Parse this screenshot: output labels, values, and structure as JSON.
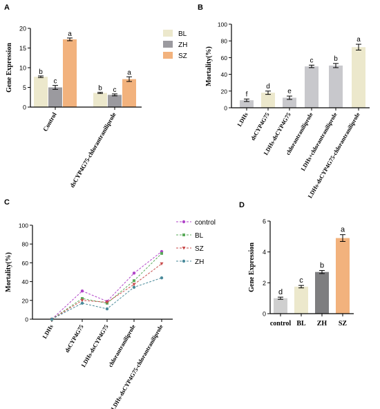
{
  "chart_data": [
    {
      "panel": "A",
      "type": "bar",
      "ylabel": "Gene Expression",
      "ylim": [
        0,
        20
      ],
      "yticks": [
        0,
        5,
        10,
        15,
        20
      ],
      "categories": [
        "Control",
        "dsCYP4G75-chlorantraniliprole"
      ],
      "series": [
        {
          "name": "BL",
          "color": "#ece8cc",
          "values": [
            7.7,
            3.6
          ],
          "errors": [
            0.2,
            0.15
          ],
          "letters": [
            "b",
            "b"
          ]
        },
        {
          "name": "ZH",
          "color": "#9b9a9f",
          "values": [
            5.0,
            3.1
          ],
          "errors": [
            0.5,
            0.25
          ],
          "letters": [
            "c",
            "c"
          ]
        },
        {
          "name": "SZ",
          "color": "#f2b27d",
          "values": [
            17.2,
            7.1
          ],
          "errors": [
            0.35,
            0.6
          ],
          "letters": [
            "a",
            "a"
          ]
        }
      ],
      "legend": "right"
    },
    {
      "panel": "B",
      "type": "bar",
      "ylabel": "Mortality(%)",
      "ylim": [
        0,
        100
      ],
      "yticks": [
        0,
        20,
        40,
        60,
        80,
        100
      ],
      "categories": [
        "LDHs",
        "dsCYP4G75",
        "LDHs-dsCYP4G75",
        "chlorantraniliprole",
        "LDHs+chlorantraniliprole",
        "LDHs-dsCYP4G75-chlorantraniliprole"
      ],
      "values": [
        9,
        18,
        12,
        49.5,
        50.5,
        72.5
      ],
      "errors": [
        1.5,
        2,
        2,
        1.5,
        2.5,
        3.5
      ],
      "letters": [
        "f",
        "d",
        "e",
        "c",
        "b",
        "a"
      ],
      "colors": [
        "#c8c8cc",
        "#ece8cc",
        "#c8c8cc",
        "#c8c8cc",
        "#c8c8cc",
        "#ece8cc"
      ]
    },
    {
      "panel": "C",
      "type": "line",
      "ylabel": "Mortality(%)",
      "ylim": [
        0,
        100
      ],
      "yticks": [
        0,
        20,
        40,
        60,
        80,
        100
      ],
      "categories": [
        "LDHs",
        "dsCYP4G75",
        "LDHs-dsCYP4G75",
        "chlorantraniliprole",
        "LDHs-dsCYP4G75-chlorantraniliprole"
      ],
      "series": [
        {
          "name": "control",
          "color": "#b044c8",
          "marker": "circle",
          "values": [
            0,
            30,
            19,
            49,
            72
          ]
        },
        {
          "name": "BL",
          "color": "#5aaa5a",
          "marker": "square",
          "values": [
            0,
            22,
            17,
            41,
            70
          ]
        },
        {
          "name": "SZ",
          "color": "#c84a4a",
          "marker": "triangle",
          "values": [
            0,
            20,
            18,
            37,
            59
          ]
        },
        {
          "name": "ZH",
          "color": "#4a8a9a",
          "marker": "circle",
          "values": [
            0,
            17,
            11,
            34,
            44
          ]
        }
      ],
      "legend": "right"
    },
    {
      "panel": "D",
      "type": "bar",
      "ylabel": "Gene Expression",
      "ylim": [
        0,
        6
      ],
      "yticks": [
        0,
        2,
        4,
        6
      ],
      "categories": [
        "control",
        "BL",
        "ZH",
        "SZ"
      ],
      "values": [
        1.0,
        1.75,
        2.7,
        4.9
      ],
      "errors": [
        0.07,
        0.08,
        0.1,
        0.22
      ],
      "letters": [
        "d",
        "c",
        "b",
        "a"
      ],
      "colors": [
        "#cfcfcf",
        "#ece8cc",
        "#7e7e80",
        "#f2b27d"
      ]
    }
  ]
}
